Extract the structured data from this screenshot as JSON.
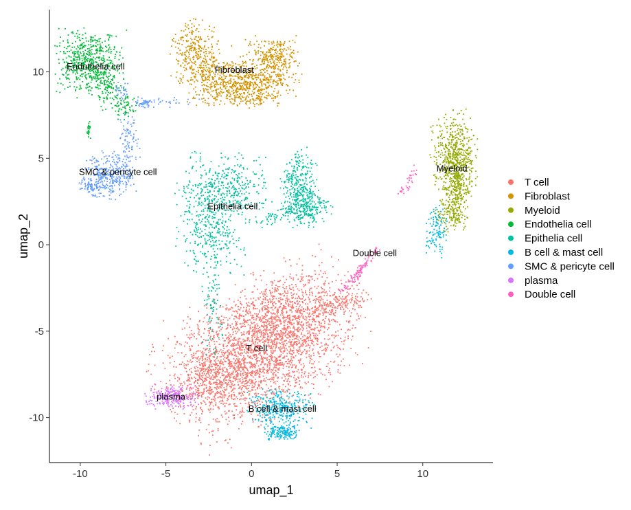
{
  "chart_data": {
    "type": "scatter",
    "title": "",
    "xlabel": "umap_1",
    "ylabel": "umap_2",
    "xlim": [
      -11.8,
      14.1
    ],
    "ylim": [
      -12.6,
      13.6
    ],
    "x_ticks": [
      -10,
      -5,
      0,
      5,
      10
    ],
    "y_ticks": [
      -10,
      -5,
      0,
      5,
      10
    ],
    "grid": false,
    "legend_position": "right",
    "point_size": "small",
    "series": [
      {
        "name": "T cell",
        "color": "#F8766D",
        "label": "T cell",
        "label_pos": [
          0.3,
          -6.0
        ],
        "blobs": [
          {
            "cx": 0.5,
            "cy": -6.0,
            "sx": 2.7,
            "sy": 1.7,
            "rot": 28,
            "n": 2600
          },
          {
            "cx": 2.5,
            "cy": -4.2,
            "sx": 1.8,
            "sy": 1.0,
            "rot": 25,
            "n": 500
          },
          {
            "cx": -1.8,
            "cy": -8.0,
            "sx": 1.2,
            "sy": 0.8,
            "rot": 0,
            "n": 300
          },
          {
            "cx": 5.3,
            "cy": -3.3,
            "sx": 0.8,
            "sy": 0.35,
            "rot": 20,
            "n": 120
          },
          {
            "cx": -2.3,
            "cy": -7.0,
            "sx": 0.6,
            "sy": 1.0,
            "rot": 0,
            "n": 120
          }
        ]
      },
      {
        "name": "Fibroblast",
        "color": "#D39200",
        "label": "Fibroblast",
        "label_pos": [
          -1.0,
          10.1
        ],
        "blobs": [
          {
            "cx": -3.4,
            "cy": 11.1,
            "sx": 0.6,
            "sy": 0.9,
            "rot": 0,
            "n": 240
          },
          {
            "cx": -2.5,
            "cy": 9.9,
            "sx": 0.7,
            "sy": 0.9,
            "rot": 0,
            "n": 200
          },
          {
            "cx": -1.3,
            "cy": 9.4,
            "sx": 0.9,
            "sy": 0.6,
            "rot": 0,
            "n": 260
          },
          {
            "cx": 0.0,
            "cy": 9.0,
            "sx": 0.8,
            "sy": 0.5,
            "rot": 0,
            "n": 240
          },
          {
            "cx": 1.1,
            "cy": 10.0,
            "sx": 0.8,
            "sy": 0.8,
            "rot": 0,
            "n": 260
          },
          {
            "cx": 1.4,
            "cy": 11.0,
            "sx": 0.6,
            "sy": 0.5,
            "rot": 0,
            "n": 160
          }
        ]
      },
      {
        "name": "Myeloid",
        "color": "#93AA00",
        "label": "Myeloid",
        "label_pos": [
          11.7,
          4.4
        ],
        "blobs": [
          {
            "cx": 11.8,
            "cy": 5.3,
            "sx": 0.6,
            "sy": 1.1,
            "rot": 0,
            "n": 480
          },
          {
            "cx": 12.0,
            "cy": 3.5,
            "sx": 0.4,
            "sy": 1.1,
            "rot": 0,
            "n": 320
          },
          {
            "cx": 11.6,
            "cy": 1.8,
            "sx": 0.4,
            "sy": 0.5,
            "rot": 0,
            "n": 120
          }
        ]
      },
      {
        "name": "Endothelia cell",
        "color": "#00BA38",
        "label": "Endothelia cell",
        "label_pos": [
          -9.1,
          10.3
        ],
        "blobs": [
          {
            "cx": -9.4,
            "cy": 10.5,
            "sx": 0.9,
            "sy": 0.9,
            "rot": 0,
            "n": 620
          },
          {
            "cx": -8.1,
            "cy": 8.5,
            "sx": 0.6,
            "sy": 0.4,
            "rot": -40,
            "n": 90
          },
          {
            "cx": -7.3,
            "cy": 7.8,
            "sx": 0.3,
            "sy": 0.3,
            "rot": 0,
            "n": 40
          },
          {
            "cx": -9.5,
            "cy": 6.7,
            "sx": 0.05,
            "sy": 0.3,
            "rot": 0,
            "n": 25
          }
        ]
      },
      {
        "name": "Epithelia cell",
        "color": "#00C19F",
        "label": "Epithelia cell",
        "label_pos": [
          -1.1,
          2.2
        ],
        "blobs": [
          {
            "cx": -1.6,
            "cy": 3.3,
            "sx": 1.2,
            "sy": 0.9,
            "rot": 0,
            "n": 420
          },
          {
            "cx": -2.3,
            "cy": 0.8,
            "sx": 0.9,
            "sy": 1.1,
            "rot": 0,
            "n": 300
          },
          {
            "cx": 2.8,
            "cy": 3.3,
            "sx": 0.5,
            "sy": 1.0,
            "rot": 0,
            "n": 300
          },
          {
            "cx": 3.3,
            "cy": 2.2,
            "sx": 0.6,
            "sy": 0.5,
            "rot": 0,
            "n": 200
          },
          {
            "cx": 1.3,
            "cy": 1.6,
            "sx": 0.6,
            "sy": 0.2,
            "rot": 20,
            "n": 50
          },
          {
            "cx": -2.3,
            "cy": -3.3,
            "sx": 0.3,
            "sy": 1.6,
            "rot": 0,
            "n": 90
          }
        ]
      },
      {
        "name": "B cell & mast cell",
        "color": "#00B9E3",
        "label": "B cell & mast cell",
        "label_pos": [
          1.8,
          -9.5
        ],
        "blobs": [
          {
            "cx": 1.7,
            "cy": -9.5,
            "sx": 0.9,
            "sy": 0.5,
            "rot": 0,
            "n": 330
          },
          {
            "cx": 1.9,
            "cy": -10.9,
            "sx": 0.5,
            "sy": 0.2,
            "rot": 0,
            "n": 150
          },
          {
            "cx": 10.8,
            "cy": 0.9,
            "sx": 0.3,
            "sy": 0.7,
            "rot": 0,
            "n": 110
          }
        ]
      },
      {
        "name": "SMC & pericyte cell",
        "color": "#619CFF",
        "label": "SMC & pericyte cell",
        "label_pos": [
          -7.8,
          4.2
        ],
        "blobs": [
          {
            "cx": -8.3,
            "cy": 4.0,
            "sx": 0.7,
            "sy": 0.6,
            "rot": 0,
            "n": 330
          },
          {
            "cx": -9.4,
            "cy": 3.4,
            "sx": 0.3,
            "sy": 0.2,
            "rot": 0,
            "n": 60
          },
          {
            "cx": -7.2,
            "cy": 5.7,
            "sx": 0.3,
            "sy": 0.8,
            "rot": 0,
            "n": 90
          },
          {
            "cx": -6.3,
            "cy": 8.2,
            "sx": 0.25,
            "sy": 0.12,
            "rot": 0,
            "n": 40
          },
          {
            "cx": -4.9,
            "cy": 8.3,
            "sx": 0.8,
            "sy": 0.15,
            "rot": 0,
            "n": 30
          },
          {
            "cx": -7.6,
            "cy": 8.9,
            "sx": 0.2,
            "sy": 0.3,
            "rot": 0,
            "n": 25
          }
        ]
      },
      {
        "name": "plasma",
        "color": "#DB72FB",
        "label": "plasma",
        "label_pos": [
          -4.7,
          -8.8
        ],
        "blobs": [
          {
            "cx": -4.6,
            "cy": -8.8,
            "sx": 0.7,
            "sy": 0.3,
            "rot": 0,
            "n": 260
          }
        ]
      },
      {
        "name": "Double cell",
        "color": "#FF61C3",
        "label": "Double cell",
        "label_pos": [
          7.2,
          -0.5
        ],
        "blobs": [
          {
            "cx": 6.3,
            "cy": -1.5,
            "sx": 0.9,
            "sy": 0.12,
            "rot": 50,
            "n": 110
          },
          {
            "cx": 9.2,
            "cy": 3.7,
            "sx": 0.5,
            "sy": 0.12,
            "rot": 60,
            "n": 35
          }
        ]
      }
    ]
  }
}
